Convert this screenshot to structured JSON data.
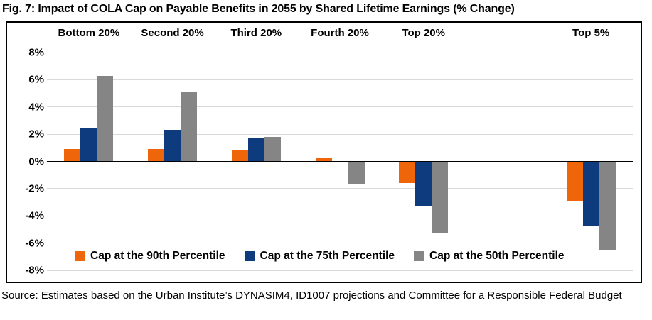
{
  "title": "Fig. 7: Impact of COLA Cap on Payable Benefits in 2055 by Shared Lifetime Earnings (% Change)",
  "source": "Source: Estimates based on the Urban Institute’s DYNASIM4, ID1007 projections and Committee for a Responsible Federal Budget",
  "colors": {
    "grid": "#D9D9D9",
    "axis": "#000000",
    "orange": "#EE6609",
    "navy": "#0E3B7E",
    "gray": "#858585"
  },
  "chart_data": {
    "type": "bar",
    "categories": [
      "Bottom 20%",
      "Second 20%",
      "Third 20%",
      "Fourth 20%",
      "Top 20%",
      "Top 5%"
    ],
    "category_slots": [
      0,
      1,
      2,
      3,
      4,
      6
    ],
    "num_slots": 7,
    "series": [
      {
        "name": "Cap at the 90th Percentile",
        "color": "#EE6609",
        "values": [
          0.9,
          0.9,
          0.8,
          0.3,
          -1.6,
          -2.9
        ]
      },
      {
        "name": "Cap at the 75th Percentile",
        "color": "#0E3B7E",
        "values": [
          2.4,
          2.3,
          1.7,
          -0.1,
          -3.3,
          -4.7
        ]
      },
      {
        "name": "Cap at the 50th Percentile",
        "color": "#858585",
        "values": [
          6.3,
          5.1,
          1.8,
          -1.7,
          -5.3,
          -6.5
        ]
      }
    ],
    "y_axis": {
      "min": -8,
      "max": 8,
      "step": 2,
      "tick_suffix": "%"
    },
    "grid": true,
    "legend_position": "bottom-inside",
    "xlabel": "",
    "ylabel": ""
  }
}
